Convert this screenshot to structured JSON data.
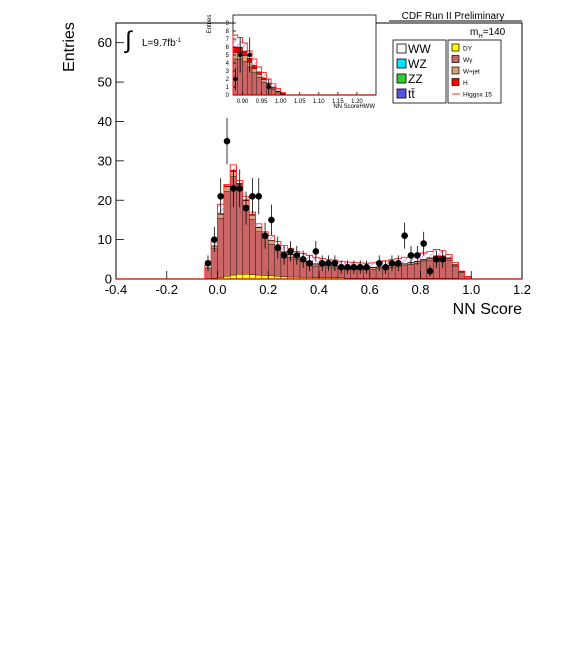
{
  "header": {
    "experiment": "CDF Run II Preliminary",
    "mass_label": "m",
    "mass_sub": "H",
    "mass_value": "=140",
    "lumi_label": "L=9.7fb",
    "lumi_sup": "-1"
  },
  "legend": {
    "left": [
      {
        "label": "WW",
        "color": "#ffffff"
      },
      {
        "label": "WZ",
        "color": "#00e5ff"
      },
      {
        "label": "ZZ",
        "color": "#33cc33"
      },
      {
        "label": "tt̄",
        "color": "#5555dd"
      }
    ],
    "right": [
      {
        "label": "DY",
        "color": "#ffff00"
      },
      {
        "label": "Wγ",
        "color": "#cc6666"
      },
      {
        "label": "W+jet",
        "color": "#d9a07a"
      },
      {
        "label": "H",
        "color": "#ff0000"
      },
      {
        "label": "Higgsx 15",
        "color": "#ff3333",
        "line": true
      }
    ]
  },
  "chart_data": [
    {
      "type": "bar",
      "xlabel": "NN Score",
      "ylabel": "Entries",
      "xlim": [
        -0.4,
        1.2
      ],
      "ylim": [
        0,
        65
      ],
      "xticks": [
        "-0.4",
        "-0.2",
        "0.0",
        "0.2",
        "0.4",
        "0.6",
        "0.8",
        "1.0",
        "1.2"
      ],
      "yticks": [
        "0",
        "10",
        "20",
        "30",
        "40",
        "50",
        "60"
      ],
      "bin_width": 0.025,
      "x": [
        -0.05,
        -0.025,
        0.0,
        0.025,
        0.05,
        0.075,
        0.1,
        0.125,
        0.15,
        0.175,
        0.2,
        0.225,
        0.25,
        0.275,
        0.3,
        0.325,
        0.35,
        0.375,
        0.4,
        0.425,
        0.45,
        0.475,
        0.5,
        0.525,
        0.55,
        0.575,
        0.6,
        0.625,
        0.65,
        0.675,
        0.7,
        0.725,
        0.75,
        0.775,
        0.8,
        0.825,
        0.85,
        0.875,
        0.9,
        0.925,
        0.95,
        0.975
      ],
      "series": [
        {
          "name": "DY",
          "values": [
            0.1,
            0.2,
            0.4,
            0.7,
            1.0,
            1.2,
            1.2,
            1.1,
            1.0,
            0.9,
            0.8,
            0.7,
            0.6,
            0.5,
            0.5,
            0.4,
            0.4,
            0.3,
            0.3,
            0.3,
            0.3,
            0.3,
            0.2,
            0.2,
            0.2,
            0.2,
            0.2,
            0.2,
            0.2,
            0.2,
            0.2,
            0.2,
            0.2,
            0.2,
            0.2,
            0.2,
            0.2,
            0.2,
            0.2,
            0.2,
            0.1,
            0.1
          ]
        },
        {
          "name": "Wγ",
          "values": [
            2.5,
            7.5,
            15.0,
            21.5,
            25.0,
            21.5,
            17.5,
            14.0,
            11.0,
            9.5,
            8.0,
            6.5,
            5.5,
            5.0,
            4.5,
            4.0,
            3.5,
            3.0,
            2.8,
            2.6,
            2.5,
            2.4,
            2.3,
            2.2,
            2.2,
            2.2,
            2.3,
            2.4,
            2.6,
            2.8,
            3.0,
            3.2,
            3.5,
            3.8,
            4.2,
            4.6,
            5.0,
            5.0,
            4.5,
            3.0,
            1.5,
            0.5
          ]
        },
        {
          "name": "W+jet",
          "values": [
            0.3,
            0.6,
            1.0,
            1.2,
            1.3,
            1.3,
            1.2,
            1.1,
            1.0,
            0.9,
            0.9,
            0.8,
            0.7,
            0.7,
            0.6,
            0.6,
            0.5,
            0.5,
            0.5,
            0.5,
            0.4,
            0.4,
            0.4,
            0.4,
            0.4,
            0.4,
            0.4,
            0.4,
            0.4,
            0.4,
            0.4,
            0.4,
            0.4,
            0.4,
            0.4,
            0.4,
            0.4,
            0.4,
            0.4,
            0.3,
            0.2,
            0.1
          ]
        },
        {
          "name": "H",
          "values": [
            0.0,
            0.1,
            0.2,
            0.3,
            0.3,
            0.3,
            0.2,
            0.2,
            0.2,
            0.2,
            0.1,
            0.1,
            0.1,
            0.1,
            0.1,
            0.1,
            0.1,
            0.1,
            0.1,
            0.1,
            0.1,
            0.1,
            0.1,
            0.1,
            0.1,
            0.1,
            0.1,
            0.1,
            0.1,
            0.1,
            0.1,
            0.1,
            0.1,
            0.1,
            0.2,
            0.2,
            0.3,
            0.3,
            0.3,
            0.2,
            0.1,
            0.0
          ]
        }
      ],
      "signal_x15": [
        3.5,
        10,
        19,
        24,
        29,
        25,
        21,
        17,
        14,
        12,
        11,
        9.5,
        8.5,
        7.8,
        7,
        6.5,
        6,
        5.5,
        5.2,
        5,
        4.8,
        4.5,
        4.3,
        4.2,
        4.1,
        4,
        4.1,
        4.3,
        4.6,
        4.9,
        5.2,
        5.5,
        5.8,
        6.2,
        6.6,
        7,
        7.5,
        7.2,
        6.2,
        4.2,
        2,
        0.6
      ],
      "data_points": [
        {
          "x": -0.05,
          "y": 4,
          "err": 2
        },
        {
          "x": -0.025,
          "y": 10,
          "err": 3.2
        },
        {
          "x": 0.0,
          "y": 21,
          "err": 4.6
        },
        {
          "x": 0.025,
          "y": 35,
          "err": 5.9
        },
        {
          "x": 0.05,
          "y": 23,
          "err": 4.8
        },
        {
          "x": 0.075,
          "y": 23,
          "err": 4.8
        },
        {
          "x": 0.1,
          "y": 18,
          "err": 4.2
        },
        {
          "x": 0.125,
          "y": 21,
          "err": 4.6
        },
        {
          "x": 0.15,
          "y": 21,
          "err": 4.6
        },
        {
          "x": 0.175,
          "y": 11,
          "err": 3.3
        },
        {
          "x": 0.2,
          "y": 15,
          "err": 3.9
        },
        {
          "x": 0.225,
          "y": 8,
          "err": 2.8
        },
        {
          "x": 0.25,
          "y": 6,
          "err": 2.4
        },
        {
          "x": 0.275,
          "y": 7,
          "err": 2.6
        },
        {
          "x": 0.3,
          "y": 6,
          "err": 2.4
        },
        {
          "x": 0.325,
          "y": 5,
          "err": 2.2
        },
        {
          "x": 0.35,
          "y": 4,
          "err": 2
        },
        {
          "x": 0.375,
          "y": 7,
          "err": 2.6
        },
        {
          "x": 0.4,
          "y": 4,
          "err": 2
        },
        {
          "x": 0.425,
          "y": 4,
          "err": 2
        },
        {
          "x": 0.45,
          "y": 4,
          "err": 2
        },
        {
          "x": 0.475,
          "y": 3,
          "err": 1.7
        },
        {
          "x": 0.5,
          "y": 3,
          "err": 1.7
        },
        {
          "x": 0.525,
          "y": 3,
          "err": 1.7
        },
        {
          "x": 0.55,
          "y": 3,
          "err": 1.7
        },
        {
          "x": 0.575,
          "y": 3,
          "err": 1.7
        },
        {
          "x": 0.625,
          "y": 4,
          "err": 2
        },
        {
          "x": 0.65,
          "y": 3,
          "err": 1.7
        },
        {
          "x": 0.675,
          "y": 4,
          "err": 2
        },
        {
          "x": 0.7,
          "y": 4,
          "err": 2
        },
        {
          "x": 0.725,
          "y": 11,
          "err": 3.3
        },
        {
          "x": 0.75,
          "y": 6,
          "err": 2.4
        },
        {
          "x": 0.775,
          "y": 6,
          "err": 2.4
        },
        {
          "x": 0.8,
          "y": 9,
          "err": 3
        },
        {
          "x": 0.825,
          "y": 2,
          "err": 1.4
        },
        {
          "x": 0.85,
          "y": 5,
          "err": 2.2
        },
        {
          "x": 0.875,
          "y": 5,
          "err": 2.2
        }
      ]
    },
    {
      "type": "bar",
      "xlabel": "NN ScoreHWW",
      "ylabel": "Entries",
      "xlim": [
        0.875,
        1.25
      ],
      "ylim": [
        0,
        10
      ],
      "xticks": [
        "0.90",
        "0.95",
        "1.00",
        "1.05",
        "1.10",
        "1.15",
        "1.20"
      ],
      "yticks": [
        "0",
        "1",
        "2",
        "3",
        "4",
        "5",
        "6",
        "7",
        "8",
        "9"
      ],
      "bin_width": 0.0125,
      "x": [
        0.875,
        0.8875,
        0.9,
        0.9125,
        0.925,
        0.9375,
        0.95,
        0.9625,
        0.975,
        0.9875,
        1.0
      ],
      "series": [
        {
          "name": "Wγ",
          "values": [
            4.5,
            4.5,
            4.2,
            3.5,
            2.8,
            2.2,
            1.6,
            1.1,
            0.7,
            0.3,
            0.1
          ]
        },
        {
          "name": "W+jet",
          "values": [
            0.8,
            0.8,
            0.7,
            0.6,
            0.5,
            0.4,
            0.3,
            0.2,
            0.15,
            0.1,
            0.05
          ]
        },
        {
          "name": "H",
          "values": [
            0.7,
            0.7,
            0.6,
            0.5,
            0.4,
            0.3,
            0.25,
            0.2,
            0.15,
            0.1,
            0.05
          ]
        }
      ],
      "signal_x15": [
        7.5,
        7.2,
        6.5,
        5.5,
        4.5,
        3.5,
        2.8,
        2,
        1.4,
        0.8,
        0.3
      ],
      "data_points": [
        {
          "x": 0.875,
          "y": 2,
          "err": 1.4
        },
        {
          "x": 0.8875,
          "y": 5,
          "err": 2.2
        },
        {
          "x": 0.9125,
          "y": 5,
          "err": 2.2
        },
        {
          "x": 0.9625,
          "y": 1,
          "err": 1
        }
      ]
    }
  ]
}
